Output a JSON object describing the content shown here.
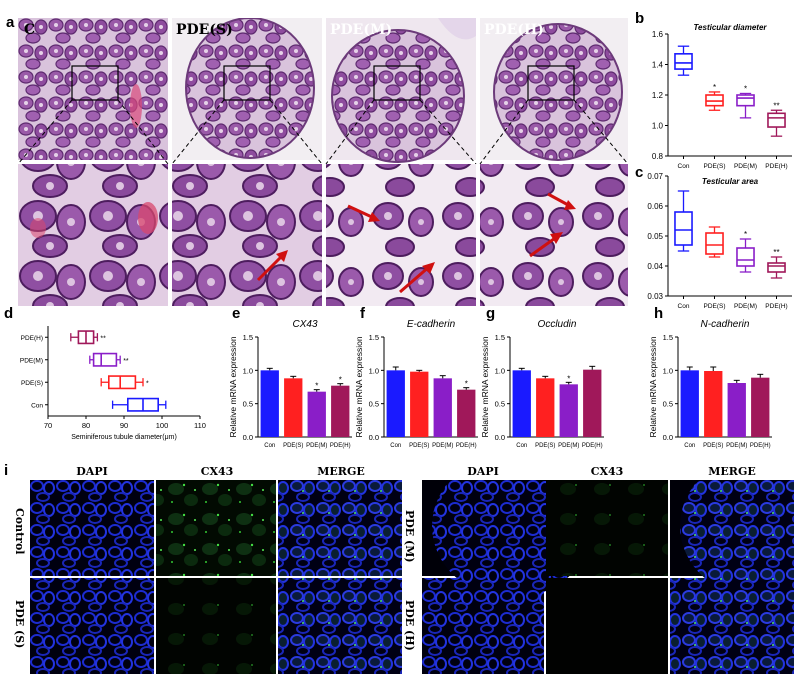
{
  "panel_letters": {
    "a": "a",
    "b": "b",
    "c": "c",
    "d": "d",
    "e": "e",
    "f": "f",
    "g": "g",
    "h": "h",
    "i": "i"
  },
  "histology_titles": [
    "C",
    "PDE(S)",
    "PDE(M)",
    "PDE(H)"
  ],
  "fluor_columns_left": [
    "DAPI",
    "CX43",
    "MERGE"
  ],
  "fluor_columns_right": [
    "DAPI",
    "CX43",
    "MERGE"
  ],
  "fluor_rows_left": [
    "Control",
    "PDE (S)"
  ],
  "fluor_rows_right": [
    "PDE (M)",
    "PDE (H)"
  ],
  "colors": {
    "con": "#1a1aff",
    "s": "#ff2020",
    "m": "#8a1ec8",
    "h": "#a0185a",
    "axis": "#000000"
  },
  "chart_data": [
    {
      "id": "b",
      "type": "box",
      "title": "Testicular diameter",
      "categories": [
        "Con",
        "PDE(S)",
        "PDE(M)",
        "PDE(H)"
      ],
      "ylim": [
        0.8,
        1.6
      ],
      "yticks": [
        "0.8",
        "1.0",
        "1.2",
        "1.4",
        "1.6"
      ],
      "boxes": [
        {
          "min": 1.33,
          "q1": 1.37,
          "median": 1.41,
          "q3": 1.47,
          "max": 1.52,
          "sig": ""
        },
        {
          "min": 1.1,
          "q1": 1.13,
          "median": 1.16,
          "q3": 1.2,
          "max": 1.22,
          "sig": "*"
        },
        {
          "min": 1.05,
          "q1": 1.13,
          "median": 1.18,
          "q3": 1.2,
          "max": 1.21,
          "sig": "*"
        },
        {
          "min": 0.93,
          "q1": 0.99,
          "median": 1.05,
          "q3": 1.08,
          "max": 1.1,
          "sig": "**"
        }
      ]
    },
    {
      "id": "c",
      "type": "box",
      "title": "Testicular area",
      "categories": [
        "Con",
        "PDE(S)",
        "PDE(M)",
        "PDE(H)"
      ],
      "ylim": [
        0.03,
        0.07
      ],
      "yticks": [
        "0.03",
        "0.04",
        "0.05",
        "0.06",
        "0.07"
      ],
      "boxes": [
        {
          "min": 0.045,
          "q1": 0.047,
          "median": 0.052,
          "q3": 0.058,
          "max": 0.065,
          "sig": ""
        },
        {
          "min": 0.043,
          "q1": 0.044,
          "median": 0.047,
          "q3": 0.051,
          "max": 0.053,
          "sig": ""
        },
        {
          "min": 0.038,
          "q1": 0.04,
          "median": 0.042,
          "q3": 0.046,
          "max": 0.049,
          "sig": "*"
        },
        {
          "min": 0.036,
          "q1": 0.038,
          "median": 0.04,
          "q3": 0.041,
          "max": 0.043,
          "sig": "**"
        }
      ]
    },
    {
      "id": "d",
      "type": "box-horizontal",
      "xlabel": "Seminiferous tubule diameter(μm)",
      "categories": [
        "Con",
        "PDE(S)",
        "PDE(M)",
        "PDE(H)"
      ],
      "xlim": [
        70,
        110
      ],
      "xticks": [
        "70",
        "80",
        "90",
        "100",
        "110"
      ],
      "boxes": [
        {
          "min": 87,
          "q1": 91,
          "median": 95,
          "q3": 99,
          "max": 101,
          "sig": ""
        },
        {
          "min": 84,
          "q1": 86,
          "median": 89,
          "q3": 93,
          "max": 95,
          "sig": "*"
        },
        {
          "min": 81,
          "q1": 82,
          "median": 84,
          "q3": 88,
          "max": 89,
          "sig": "**"
        },
        {
          "min": 76,
          "q1": 78,
          "median": 80,
          "q3": 82,
          "max": 83,
          "sig": "**"
        }
      ]
    },
    {
      "id": "e",
      "type": "bar",
      "title": "CX43",
      "ylabel": "Relative mRNA expression",
      "categories": [
        "Con",
        "PDE(S)",
        "PDE(M)",
        "PDE(H)"
      ],
      "ylim": [
        0,
        1.5
      ],
      "yticks": [
        "0.0",
        "0.5",
        "1.0",
        "1.5"
      ],
      "values": [
        1.0,
        0.88,
        0.68,
        0.77
      ],
      "errors": [
        0.03,
        0.03,
        0.03,
        0.03
      ],
      "sig": [
        "",
        "",
        "*",
        "*"
      ]
    },
    {
      "id": "f",
      "type": "bar",
      "title": "E-cadherin",
      "ylabel": "Relative mRNA expression",
      "categories": [
        "Con",
        "PDE(S)",
        "PDE(M)",
        "PDE(H)"
      ],
      "ylim": [
        0,
        1.5
      ],
      "yticks": [
        "0.0",
        "0.5",
        "1.0",
        "1.5"
      ],
      "values": [
        1.0,
        0.98,
        0.88,
        0.71
      ],
      "errors": [
        0.05,
        0.02,
        0.04,
        0.03
      ],
      "sig": [
        "",
        "",
        "",
        "*"
      ]
    },
    {
      "id": "g",
      "type": "bar",
      "title": "Occludin",
      "ylabel": "Relative mRNA expression",
      "categories": [
        "Con",
        "PDE(S)",
        "PDE(M)",
        "PDE(H)"
      ],
      "ylim": [
        0,
        1.5
      ],
      "yticks": [
        "0.0",
        "0.5",
        "1.0",
        "1.5"
      ],
      "values": [
        1.0,
        0.88,
        0.79,
        1.01
      ],
      "errors": [
        0.03,
        0.03,
        0.03,
        0.05
      ],
      "sig": [
        "",
        "",
        "*",
        ""
      ]
    },
    {
      "id": "h",
      "type": "bar",
      "title": "N-cadherin",
      "ylabel": "Relative mRNA expression",
      "categories": [
        "Con",
        "PDE(S)",
        "PDE(M)",
        "PDE(H)"
      ],
      "ylim": [
        0,
        1.5
      ],
      "yticks": [
        "0.0",
        "0.5",
        "1.0",
        "1.5"
      ],
      "values": [
        1.0,
        0.99,
        0.81,
        0.89
      ],
      "errors": [
        0.05,
        0.06,
        0.04,
        0.05
      ],
      "sig": [
        "",
        "",
        "",
        ""
      ]
    }
  ]
}
